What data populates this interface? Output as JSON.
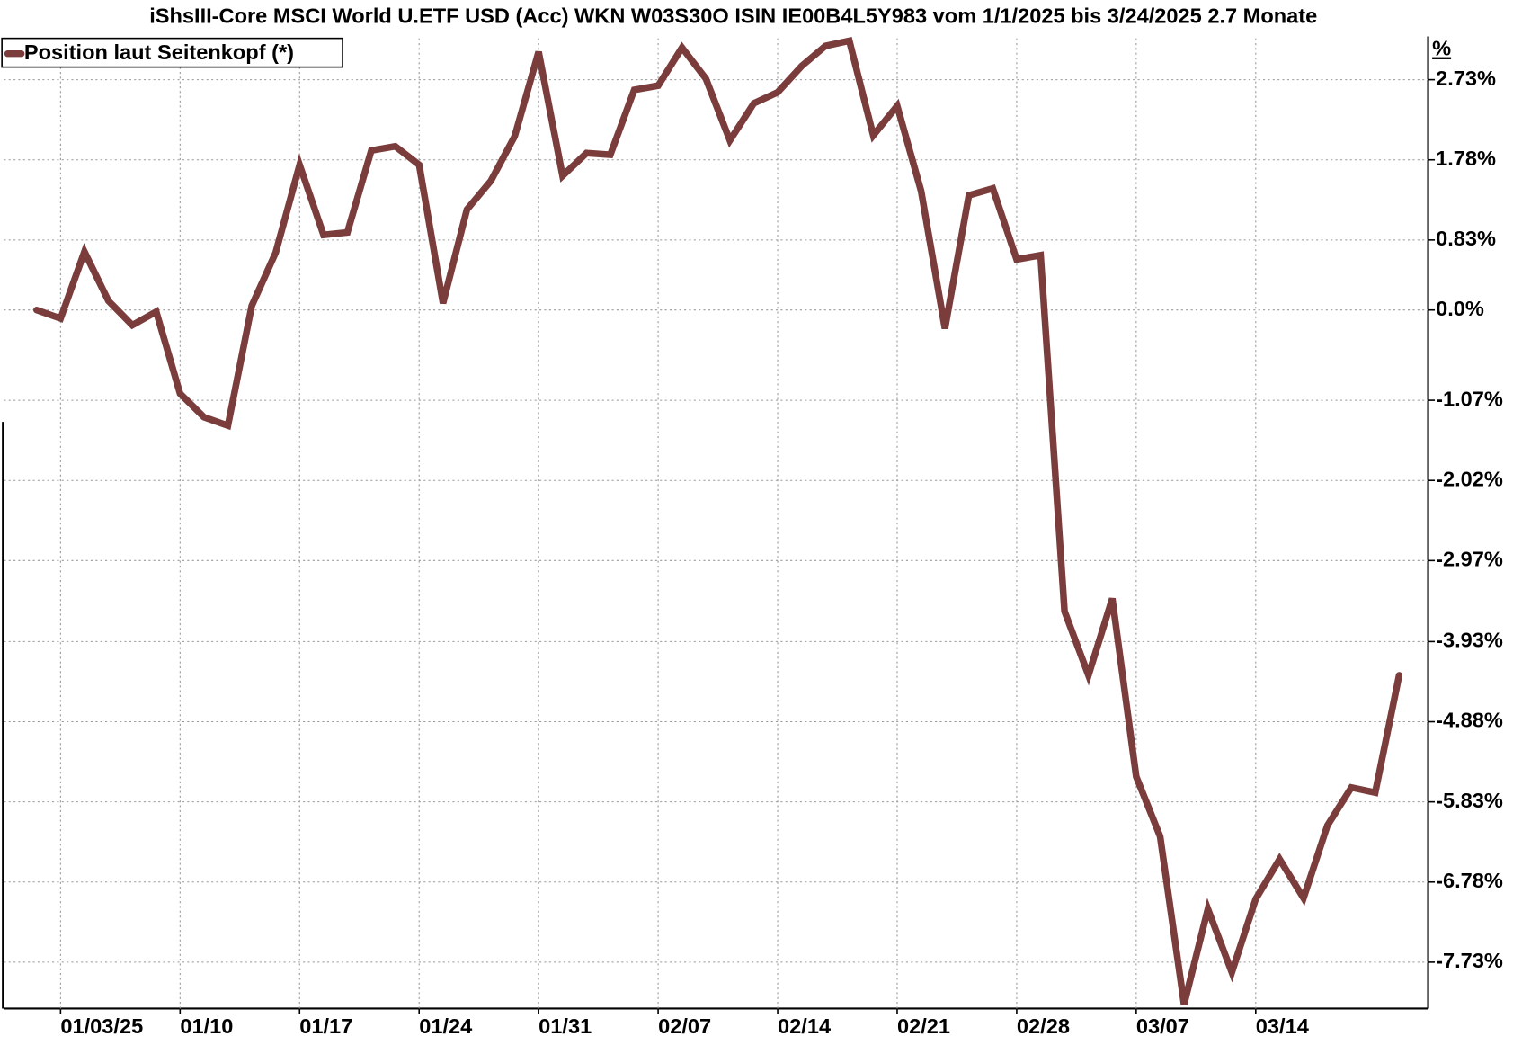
{
  "chart_data": {
    "type": "line",
    "title": "iShsIII-Core MSCI World U.ETF USD (Acc) WKN W03S30O ISIN IE00B4L5Y983 vom 1/1/2025 bis 3/24/2025 2.7 Monate",
    "y_unit": "%",
    "categories": [
      null,
      "01/03/25",
      null,
      null,
      null,
      null,
      "01/10",
      null,
      null,
      null,
      null,
      "01/17",
      null,
      null,
      null,
      null,
      "01/24",
      null,
      null,
      null,
      null,
      "01/31",
      null,
      null,
      null,
      null,
      "02/07",
      null,
      null,
      null,
      null,
      "02/14",
      null,
      null,
      null,
      null,
      "02/21",
      null,
      null,
      null,
      null,
      "02/28",
      null,
      null,
      null,
      null,
      "03/07",
      null,
      null,
      null,
      null,
      "03/14",
      null,
      null,
      null,
      null,
      null,
      null
    ],
    "series": [
      {
        "name": "Position laut Seitenkopf (*)",
        "color": "#7b3c3c",
        "values": [
          0.0,
          -0.1,
          0.69,
          0.11,
          -0.18,
          -0.02,
          -0.99,
          -1.27,
          -1.37,
          0.05,
          0.68,
          1.72,
          0.89,
          0.92,
          1.89,
          1.94,
          1.72,
          0.08,
          1.19,
          1.53,
          2.06,
          3.06,
          1.59,
          1.86,
          1.84,
          2.61,
          2.66,
          3.11,
          2.74,
          2.01,
          2.45,
          2.58,
          2.89,
          3.13,
          3.19,
          2.07,
          2.42,
          1.41,
          -0.22,
          1.36,
          1.44,
          0.6,
          0.65,
          -3.57,
          -4.33,
          -3.42,
          -5.53,
          -6.24,
          -8.23,
          -7.1,
          -7.85,
          -6.98,
          -6.51,
          -6.97,
          -6.11,
          -5.66,
          -5.72,
          -4.33
        ]
      }
    ],
    "ylim": [
      -8.28,
      3.22
    ],
    "yticks": [
      {
        "value": 2.73,
        "label": "2.73%"
      },
      {
        "value": 1.78,
        "label": "1.78%"
      },
      {
        "value": 0.83,
        "label": "0.83%"
      },
      {
        "value": 0,
        "label": "0.0%"
      },
      {
        "value": -1.07,
        "label": "-1.07%"
      },
      {
        "value": -2.02,
        "label": "-2.02%"
      },
      {
        "value": -2.97,
        "label": "-2.97%"
      },
      {
        "value": -3.93,
        "label": "-3.93%"
      },
      {
        "value": -4.88,
        "label": "-4.88%"
      },
      {
        "value": -5.83,
        "label": "-5.83%"
      },
      {
        "value": -6.78,
        "label": "-6.78%"
      },
      {
        "value": -7.73,
        "label": "-7.73%"
      }
    ],
    "grid": true,
    "legend": "top-left"
  }
}
